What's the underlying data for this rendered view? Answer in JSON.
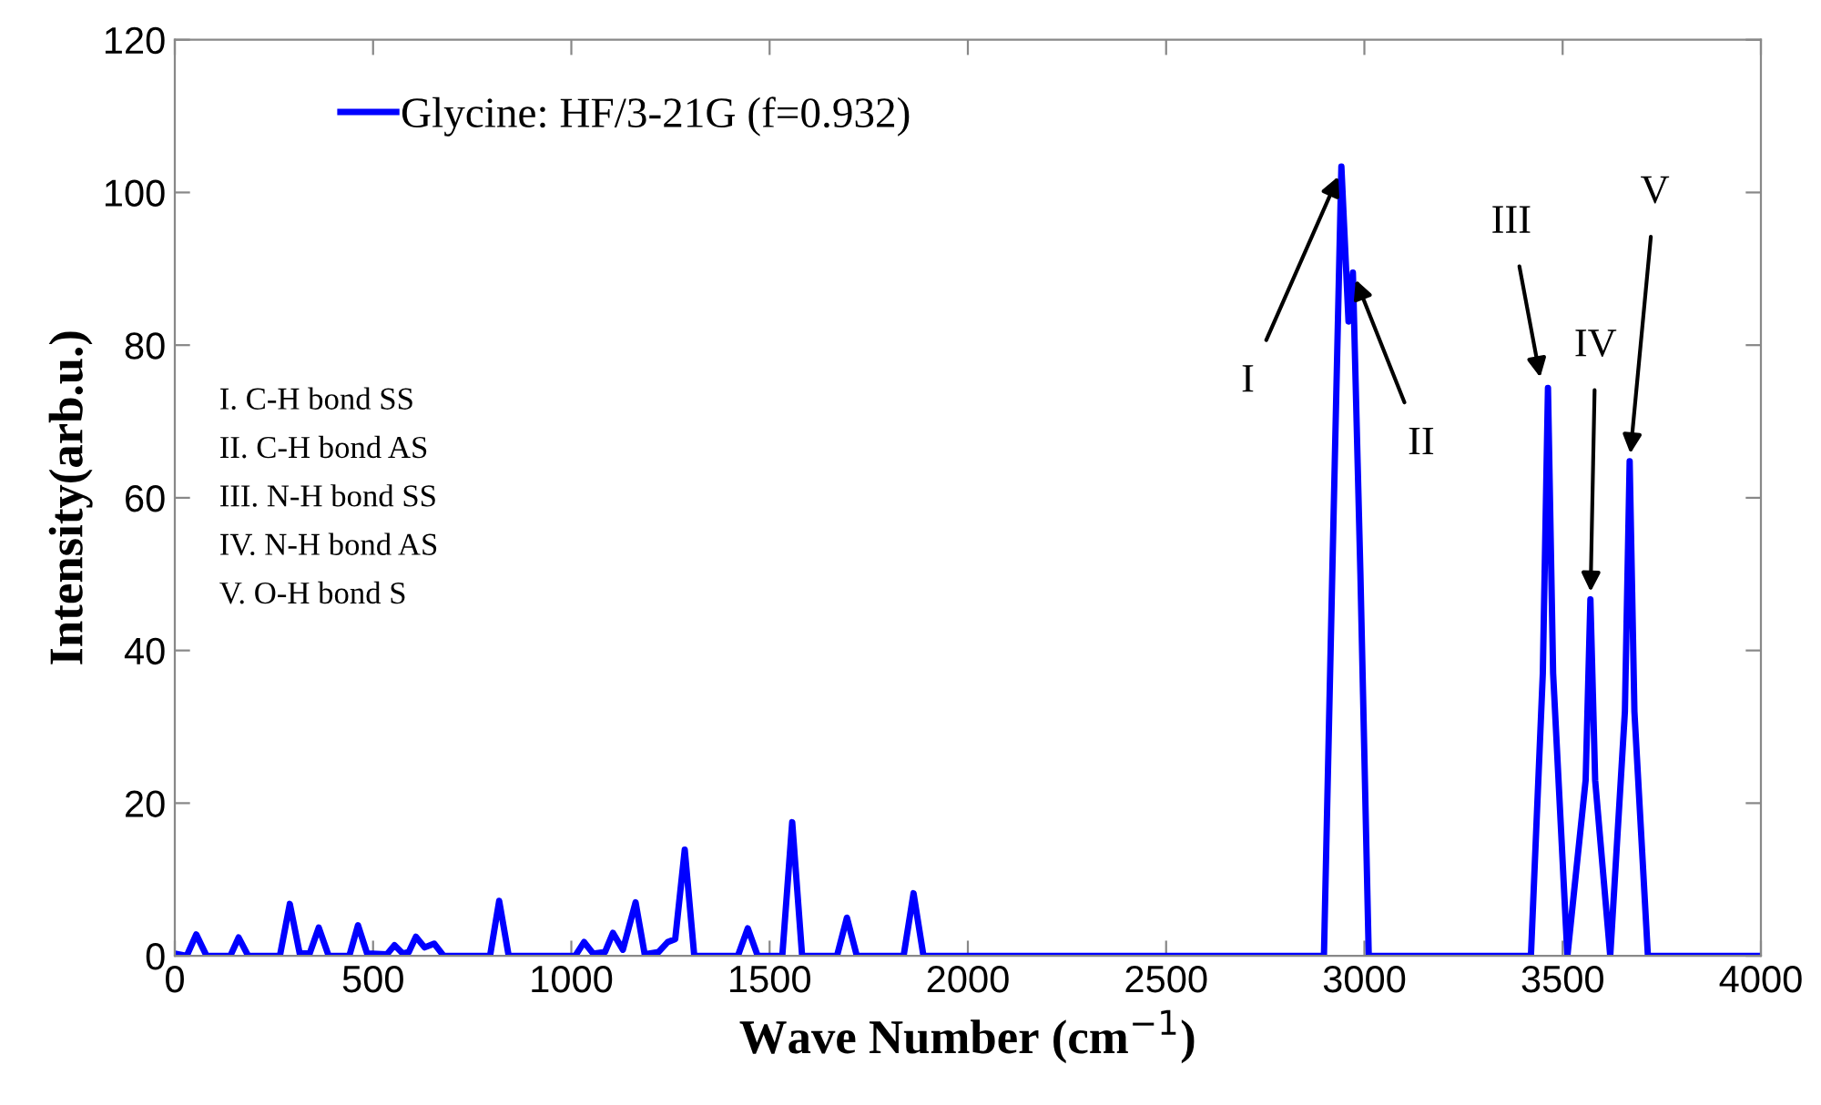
{
  "chart_data": {
    "type": "line",
    "xlabel": "Wave Number (cm$^{−1}$)",
    "ylabel": "Intensity(arb.u.)",
    "xlim": [
      0,
      4000
    ],
    "ylim": [
      0,
      120
    ],
    "xticks": [
      0,
      500,
      1000,
      1500,
      2000,
      2500,
      3000,
      3500,
      4000
    ],
    "yticks": [
      0,
      20,
      40,
      60,
      80,
      100,
      120
    ],
    "grid": false,
    "legend": "top left",
    "marker": "none",
    "line_style": "solid",
    "series": [
      {
        "name": "Glycine: HF/3-21G (f=0.932)",
        "color": "#0000ff",
        "x": [
          0,
          30,
          54,
          80,
          140,
          161,
          185,
          265,
          290,
          315,
          340,
          363,
          388,
          440,
          462,
          485,
          535,
          554,
          575,
          590,
          608,
          630,
          654,
          678,
          795,
          818,
          842,
          1010,
          1032,
          1055,
          1085,
          1105,
          1130,
          1162,
          1185,
          1220,
          1243,
          1262,
          1286,
          1310,
          1420,
          1445,
          1470,
          1532,
          1557,
          1582,
          1670,
          1695,
          1720,
          1838,
          1863,
          1888,
          2898,
          2919,
          2942,
          2960,
          2971,
          2990,
          3011,
          3420,
          3450,
          3463,
          3476,
          3512,
          3558,
          3570,
          3582,
          3620,
          3657,
          3669,
          3681,
          3715,
          4000
        ],
        "values": [
          0.3,
          0,
          2.8,
          0,
          0,
          2.4,
          0,
          0,
          6.8,
          0.3,
          0.3,
          3.7,
          0,
          0,
          4.0,
          0.3,
          0.2,
          1.4,
          0.3,
          0.5,
          2.5,
          1.1,
          1.6,
          0,
          0,
          7.2,
          0,
          0,
          1.8,
          0.3,
          0.5,
          3.0,
          0.8,
          7.0,
          0.2,
          0.5,
          1.8,
          2.2,
          13.9,
          0,
          0,
          3.6,
          0,
          0,
          17.5,
          0,
          0,
          5.0,
          0,
          0,
          8.2,
          0,
          0,
          50,
          103.4,
          83.1,
          89.5,
          50,
          0,
          0,
          37,
          74.4,
          37,
          0,
          23,
          46.7,
          23,
          0,
          32,
          64.8,
          32,
          0,
          0
        ]
      }
    ],
    "annotations": [
      {
        "text": "I",
        "x": 2942,
        "y": 103
      },
      {
        "text": "II",
        "x": 2971,
        "y": 89.5
      },
      {
        "text": "III",
        "x": 3447,
        "y": 74.8
      },
      {
        "text": "IV",
        "x": 3570,
        "y": 46.7
      },
      {
        "text": "V",
        "x": 3669,
        "y": 64.8
      },
      "I. C-H bond SS",
      "II. C-H bond AS",
      "III. N-H bond SS",
      "IV. N-H bond AS",
      "V. O-H bond S"
    ]
  }
}
